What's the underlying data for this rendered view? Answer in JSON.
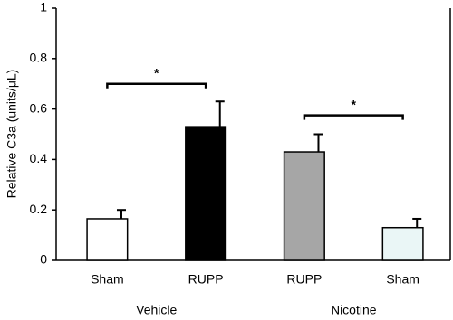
{
  "chart_data": {
    "type": "bar",
    "ylabel": "Relative C3a (units/μL)",
    "categories": [
      "Sham",
      "RUPP",
      "RUPP",
      "Sham"
    ],
    "groups": [
      {
        "label": "Vehicle",
        "size": 2
      },
      {
        "label": "Nicotine",
        "size": 2
      }
    ],
    "values": [
      0.165,
      0.53,
      0.43,
      0.13
    ],
    "errors": [
      0.035,
      0.1,
      0.07,
      0.035
    ],
    "colors": [
      "#ffffff",
      "#000000",
      "#a6a6a6",
      "#eaf6f6"
    ],
    "ylim": [
      0,
      1
    ],
    "yticks": [
      0,
      0.2,
      0.4,
      0.6,
      0.8,
      1
    ],
    "annotations": [
      {
        "text": "*",
        "y": 0.7
      },
      {
        "text": "*",
        "y": 0.575
      }
    ]
  }
}
